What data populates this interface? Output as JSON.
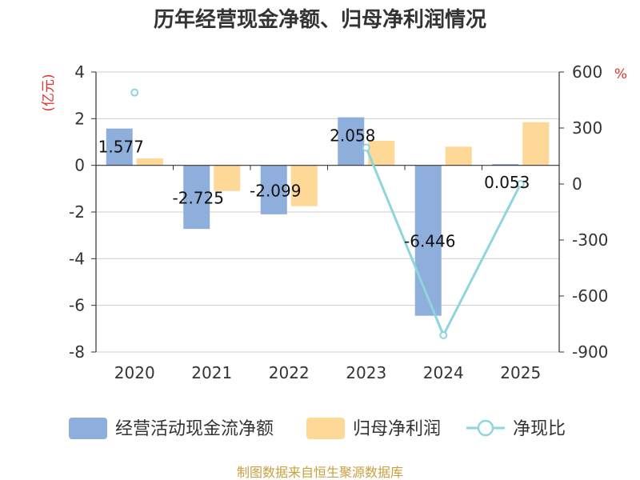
{
  "chart_data": {
    "type": "bar",
    "title": "历年经营现金净额、归母净利润情况",
    "categories": [
      "2020",
      "2021",
      "2022",
      "2023",
      "2024",
      "2025"
    ],
    "left_axis": {
      "unit": "(亿元)",
      "ylim": [
        -8,
        4
      ],
      "ticks": [
        "4",
        "2",
        "0",
        "-2",
        "-4",
        "-6",
        "-8"
      ]
    },
    "right_axis": {
      "unit": "%",
      "ylim": [
        -900,
        600
      ],
      "ticks": [
        "600",
        "300",
        "0",
        "-300",
        "-600",
        "-900"
      ]
    },
    "series": [
      {
        "name": "经营活动现金流净额",
        "type": "bar",
        "axis": "left",
        "color": "#8eaedb",
        "values": [
          1.577,
          -2.725,
          -2.099,
          2.058,
          -6.446,
          0.053
        ],
        "labels": [
          "1.577",
          "-2.725",
          "-2.099",
          "2.058",
          "-6.446",
          "0.053"
        ]
      },
      {
        "name": "归母净利润",
        "type": "bar",
        "axis": "left",
        "color": "#fdd896",
        "values": [
          0.3,
          -1.1,
          -1.75,
          1.05,
          0.8,
          1.85
        ]
      },
      {
        "name": "净现比",
        "type": "line",
        "axis": "right",
        "color": "#8fd5dc",
        "values": [
          490,
          null,
          null,
          195,
          -810,
          0
        ]
      }
    ],
    "legend_position": "bottom"
  },
  "source": "制图数据来自恒生聚源数据库",
  "colors": {
    "unit_red": "#e03030",
    "source_gold": "#c8a040",
    "grid": "#cccccc",
    "axis": "#333333"
  }
}
